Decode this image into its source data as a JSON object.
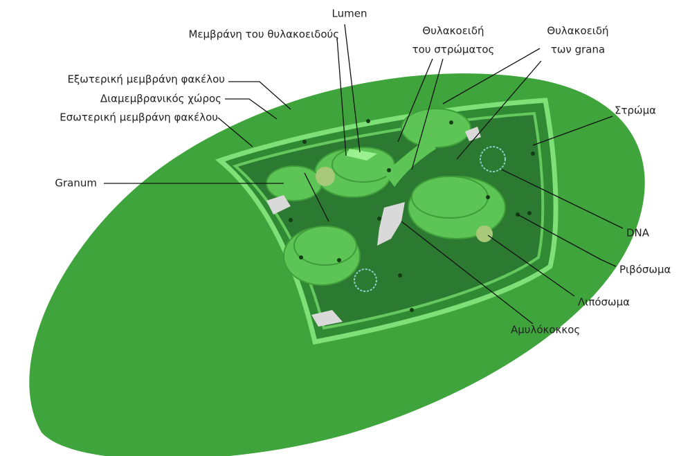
{
  "labels": [
    {
      "lines": [
        "Lumen"
      ]
    },
    {
      "lines": [
        "Μεμβράνη του θυλακοειδούς"
      ]
    },
    {
      "lines": [
        "Θυλακοειδή",
        "του στρώματος"
      ]
    },
    {
      "lines": [
        "Θυλακοειδή",
        "των grana"
      ]
    },
    {
      "lines": [
        "Εξωτερική μεμβράνη φακέλου"
      ]
    },
    {
      "lines": [
        "Διαμεμβρανικός χώρος"
      ]
    },
    {
      "lines": [
        "Εσωτερική μεμβράνη φακέλου"
      ]
    },
    {
      "lines": [
        "Στρώμα"
      ]
    },
    {
      "lines": [
        "Granum"
      ]
    },
    {
      "lines": [
        "DNA"
      ]
    },
    {
      "lines": [
        "Ριβόσωμα"
      ]
    },
    {
      "lines": [
        "Λιπόσωμα"
      ]
    },
    {
      "lines": [
        "Αμυλόκοκκος"
      ]
    }
  ]
}
